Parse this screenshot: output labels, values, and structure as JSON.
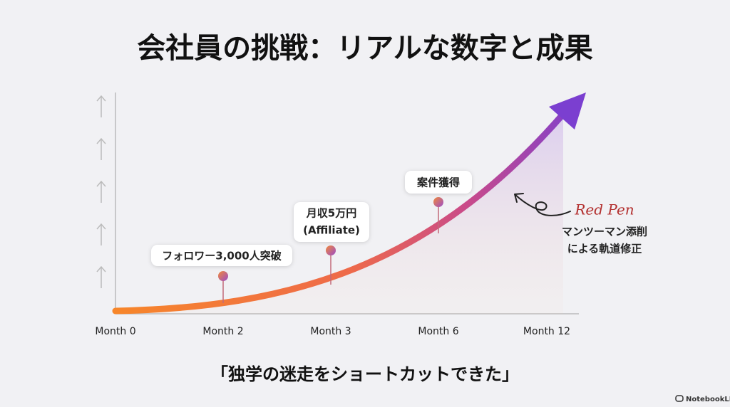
{
  "header": {
    "title": "会社員の挑戦：リアルな数字と成果"
  },
  "axis": {
    "labels": [
      "Month 0",
      "Month 2",
      "Month 3",
      "Month 6",
      "Month 12"
    ]
  },
  "milestones": [
    {
      "lines": [
        "フォロワー3,000人突破"
      ]
    },
    {
      "lines": [
        "月収5万円",
        "(Affiliate)"
      ]
    },
    {
      "lines": [
        "案件獲得"
      ]
    }
  ],
  "annotation": {
    "title": "Red Pen",
    "lines": [
      "マンツーマン添削",
      "による軌道修正"
    ]
  },
  "quote": "「独学の迷走をショートカットできた」",
  "brand": "NotebookLM"
}
